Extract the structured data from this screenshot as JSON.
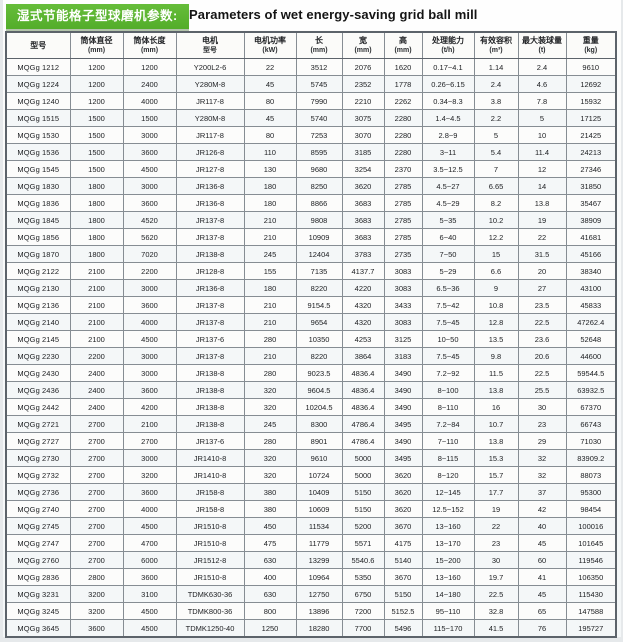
{
  "header": {
    "badge_cn": "湿式节能格子型球磨机参数:",
    "title_en": "Parameters of wet energy-saving grid ball mill"
  },
  "colors": {
    "accent_green": "#5cb231",
    "table_border": "#868d93"
  },
  "table": {
    "columns": [
      {
        "line1": "型号",
        "line2": ""
      },
      {
        "line1": "筒体直径",
        "line2": "(mm)"
      },
      {
        "line1": "筒体长度",
        "line2": "(mm)"
      },
      {
        "line1": "电机",
        "line2": "型号"
      },
      {
        "line1": "电机功率",
        "line2": "(kW)"
      },
      {
        "line1": "长",
        "line2": "(mm)"
      },
      {
        "line1": "宽",
        "line2": "(mm)"
      },
      {
        "line1": "高",
        "line2": "(mm)"
      },
      {
        "line1": "处理能力",
        "line2": "(t/h)"
      },
      {
        "line1": "有效容积",
        "line2": "(m³)"
      },
      {
        "line1": "最大装球量",
        "line2": "(t)"
      },
      {
        "line1": "重量",
        "line2": "(kg)"
      }
    ],
    "rows": [
      [
        "MQGg 1212",
        "1200",
        "1200",
        "Y200L2-6",
        "22",
        "3512",
        "2076",
        "1620",
        "0.17~4.1",
        "1.14",
        "2.4",
        "9610"
      ],
      [
        "MQGg 1224",
        "1200",
        "2400",
        "Y280M-8",
        "45",
        "5745",
        "2352",
        "1778",
        "0.26~6.15",
        "2.4",
        "4.6",
        "12692"
      ],
      [
        "MQGg 1240",
        "1200",
        "4000",
        "JR117-8",
        "80",
        "7990",
        "2210",
        "2262",
        "0.34~8.3",
        "3.8",
        "7.8",
        "15932"
      ],
      [
        "MQGg 1515",
        "1500",
        "1500",
        "Y280M-8",
        "45",
        "5740",
        "3075",
        "2280",
        "1.4~4.5",
        "2.2",
        "5",
        "17125"
      ],
      [
        "MQGg 1530",
        "1500",
        "3000",
        "JR117-8",
        "80",
        "7253",
        "3070",
        "2280",
        "2.8~9",
        "5",
        "10",
        "21425"
      ],
      [
        "MQGg 1536",
        "1500",
        "3600",
        "JR126-8",
        "110",
        "8595",
        "3185",
        "2280",
        "3~11",
        "5.4",
        "11.4",
        "24213"
      ],
      [
        "MQGg 1545",
        "1500",
        "4500",
        "JR127-8",
        "130",
        "9680",
        "3254",
        "2370",
        "3.5~12.5",
        "7",
        "12",
        "27346"
      ],
      [
        "MQGg 1830",
        "1800",
        "3000",
        "JR136-8",
        "180",
        "8250",
        "3620",
        "2785",
        "4.5~27",
        "6.65",
        "14",
        "31850"
      ],
      [
        "MQGg 1836",
        "1800",
        "3600",
        "JR136-8",
        "180",
        "8866",
        "3683",
        "2785",
        "4.5~29",
        "8.2",
        "13.8",
        "35467"
      ],
      [
        "MQGg 1845",
        "1800",
        "4520",
        "JR137-8",
        "210",
        "9808",
        "3683",
        "2785",
        "5~35",
        "10.2",
        "19",
        "38909"
      ],
      [
        "MQGg 1856",
        "1800",
        "5620",
        "JR137-8",
        "210",
        "10909",
        "3683",
        "2785",
        "6~40",
        "12.2",
        "22",
        "41681"
      ],
      [
        "MQGg 1870",
        "1800",
        "7020",
        "JR138-8",
        "245",
        "12404",
        "3783",
        "2735",
        "7~50",
        "15",
        "31.5",
        "45166"
      ],
      [
        "MQGg 2122",
        "2100",
        "2200",
        "JR128-8",
        "155",
        "7135",
        "4137.7",
        "3083",
        "5~29",
        "6.6",
        "20",
        "38340"
      ],
      [
        "MQGg 2130",
        "2100",
        "3000",
        "JR136-8",
        "180",
        "8220",
        "4220",
        "3083",
        "6.5~36",
        "9",
        "27",
        "43100"
      ],
      [
        "MQGg 2136",
        "2100",
        "3600",
        "JR137-8",
        "210",
        "9154.5",
        "4320",
        "3433",
        "7.5~42",
        "10.8",
        "23.5",
        "45833"
      ],
      [
        "MQGg 2140",
        "2100",
        "4000",
        "JR137-8",
        "210",
        "9654",
        "4320",
        "3083",
        "7.5~45",
        "12.8",
        "22.5",
        "47262.4"
      ],
      [
        "MQGg 2145",
        "2100",
        "4500",
        "JR137-6",
        "280",
        "10350",
        "4253",
        "3125",
        "10~50",
        "13.5",
        "23.6",
        "52648"
      ],
      [
        "MQGg 2230",
        "2200",
        "3000",
        "JR137-8",
        "210",
        "8220",
        "3864",
        "3183",
        "7.5~45",
        "9.8",
        "20.6",
        "44600"
      ],
      [
        "MQGg 2430",
        "2400",
        "3000",
        "JR138-8",
        "280",
        "9023.5",
        "4836.4",
        "3490",
        "7.2~92",
        "11.5",
        "22.5",
        "59544.5"
      ],
      [
        "MQGg 2436",
        "2400",
        "3600",
        "JR138-8",
        "320",
        "9604.5",
        "4836.4",
        "3490",
        "8~100",
        "13.8",
        "25.5",
        "63932.5"
      ],
      [
        "MQGg 2442",
        "2400",
        "4200",
        "JR138-8",
        "320",
        "10204.5",
        "4836.4",
        "3490",
        "8~110",
        "16",
        "30",
        "67370"
      ],
      [
        "MQGg 2721",
        "2700",
        "2100",
        "JR138-8",
        "245",
        "8300",
        "4786.4",
        "3495",
        "7.2~84",
        "10.7",
        "23",
        "66743"
      ],
      [
        "MQGg 2727",
        "2700",
        "2700",
        "JR137-6",
        "280",
        "8901",
        "4786.4",
        "3490",
        "7~110",
        "13.8",
        "29",
        "71030"
      ],
      [
        "MQGg 2730",
        "2700",
        "3000",
        "JR1410-8",
        "320",
        "9610",
        "5000",
        "3495",
        "8~115",
        "15.3",
        "32",
        "83909.2"
      ],
      [
        "MQGg 2732",
        "2700",
        "3200",
        "JR1410-8",
        "320",
        "10724",
        "5000",
        "3620",
        "8~120",
        "15.7",
        "32",
        "88073"
      ],
      [
        "MQGg 2736",
        "2700",
        "3600",
        "JR158-8",
        "380",
        "10409",
        "5150",
        "3620",
        "12~145",
        "17.7",
        "37",
        "95300"
      ],
      [
        "MQGg 2740",
        "2700",
        "4000",
        "JR158-8",
        "380",
        "10609",
        "5150",
        "3620",
        "12.5~152",
        "19",
        "42",
        "98454"
      ],
      [
        "MQGg 2745",
        "2700",
        "4500",
        "JR1510-8",
        "450",
        "11534",
        "5200",
        "3670",
        "13~160",
        "22",
        "40",
        "100016"
      ],
      [
        "MQGg 2747",
        "2700",
        "4700",
        "JR1510-8",
        "475",
        "11779",
        "5571",
        "4175",
        "13~170",
        "23",
        "45",
        "101645"
      ],
      [
        "MQGg 2760",
        "2700",
        "6000",
        "JR1512-8",
        "630",
        "13299",
        "5540.6",
        "5140",
        "15~200",
        "30",
        "60",
        "119546"
      ],
      [
        "MQGg 2836",
        "2800",
        "3600",
        "JR1510-8",
        "400",
        "10964",
        "5350",
        "3670",
        "13~160",
        "19.7",
        "41",
        "106350"
      ],
      [
        "MQGg 3231",
        "3200",
        "3100",
        "TDMK630-36",
        "630",
        "12750",
        "6750",
        "5150",
        "14~180",
        "22.5",
        "45",
        "115430"
      ],
      [
        "MQGg 3245",
        "3200",
        "4500",
        "TDMK800-36",
        "800",
        "13896",
        "7200",
        "5152.5",
        "95~110",
        "32.8",
        "65",
        "147588"
      ],
      [
        "MQGg 3645",
        "3600",
        "4500",
        "TDMK1250-40",
        "1250",
        "18280",
        "7700",
        "5496",
        "115~170",
        "41.5",
        "76",
        "195727"
      ]
    ]
  }
}
